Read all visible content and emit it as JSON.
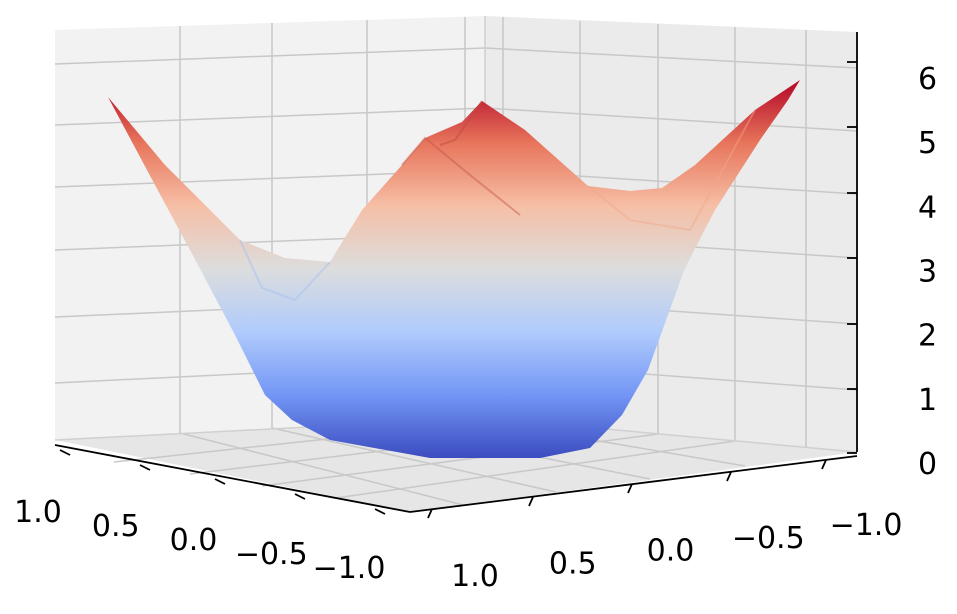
{
  "chart_data": {
    "type": "surface3d",
    "title": "",
    "xlabel": "",
    "ylabel": "",
    "zlabel": "",
    "colormap": "coolwarm",
    "colormap_stops": [
      "#3b4cc0",
      "#7396f5",
      "#b0cbfc",
      "#dcdddd",
      "#f6bfa6",
      "#e7755b",
      "#b40426"
    ],
    "xlim": [
      -1.0,
      1.0
    ],
    "ylim": [
      -1.0,
      1.0
    ],
    "zlim": [
      0,
      6
    ],
    "grid": true,
    "x_ticks": [
      1.0,
      0.5,
      0.0,
      -0.5,
      -1.0
    ],
    "x_tick_labels": [
      "1.0",
      "0.5",
      "0.0",
      "−0.5",
      "−1.0"
    ],
    "y_ticks": [
      1.0,
      0.5,
      0.0,
      -0.5,
      -1.0
    ],
    "y_tick_labels": [
      "1.0",
      "0.5",
      "0.0",
      "−0.5",
      "−1.0"
    ],
    "z_ticks": [
      0,
      1,
      2,
      3,
      4,
      5,
      6
    ],
    "z_tick_labels": [
      "0",
      "1",
      "2",
      "3",
      "4",
      "5",
      "6"
    ],
    "surface_samples": [
      {
        "x": 1.0,
        "y": 1.0,
        "z": 5.5
      },
      {
        "x": -1.0,
        "y": -1.0,
        "z": 6.0
      },
      {
        "x": -1.0,
        "y": 1.0,
        "z": 5.0
      },
      {
        "x": 1.0,
        "y": -1.0,
        "z": 5.3
      },
      {
        "x": 0.0,
        "y": 1.0,
        "z": 3.0
      },
      {
        "x": 1.0,
        "y": 0.0,
        "z": 3.0
      },
      {
        "x": 0.0,
        "y": -1.0,
        "z": 3.8
      },
      {
        "x": -1.0,
        "y": 0.0,
        "z": 4.0
      },
      {
        "x": 0.0,
        "y": 0.0,
        "z": 0.0
      }
    ]
  }
}
